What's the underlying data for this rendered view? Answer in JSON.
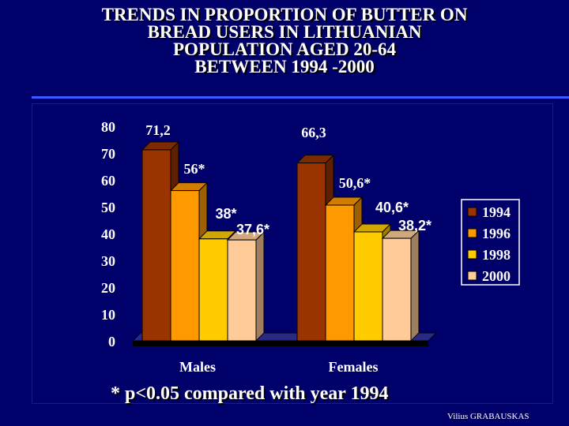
{
  "title_lines": [
    "TRENDS IN PROPORTION OF BUTTER ON",
    "BREAD  USERS IN LITHUANIAN",
    "POPULATION AGED 20-64",
    "BETWEEN  1994 -2000"
  ],
  "footnote": "* p<0.05 compared with year 1994",
  "credit": "Vilius GRABAUSKAS",
  "chart_data": {
    "type": "bar",
    "categories": [
      "Males",
      "Females"
    ],
    "ylim": [
      0,
      80
    ],
    "yticks": [
      "0",
      "10",
      "20",
      "30",
      "40",
      "50",
      "60",
      "70",
      "80"
    ],
    "series": [
      {
        "name": "1994",
        "color": "#993300",
        "values": [
          71.2,
          66.3
        ],
        "labels": [
          "71,2",
          "66,3"
        ]
      },
      {
        "name": "1996",
        "color": "#ff9900",
        "values": [
          56,
          50.6
        ],
        "labels": [
          "56*",
          "50,6*"
        ]
      },
      {
        "name": "1998",
        "color": "#ffcc00",
        "values": [
          38,
          40.6
        ],
        "labels": [
          "38*",
          "40,6*"
        ]
      },
      {
        "name": "2000",
        "color": "#ffcc99",
        "values": [
          37.6,
          38.2
        ],
        "labels": [
          "37,6*",
          "38,2*"
        ]
      }
    ],
    "legend_position": "right",
    "colors": {
      "text": "#ffffff",
      "background": "#00006b"
    }
  }
}
